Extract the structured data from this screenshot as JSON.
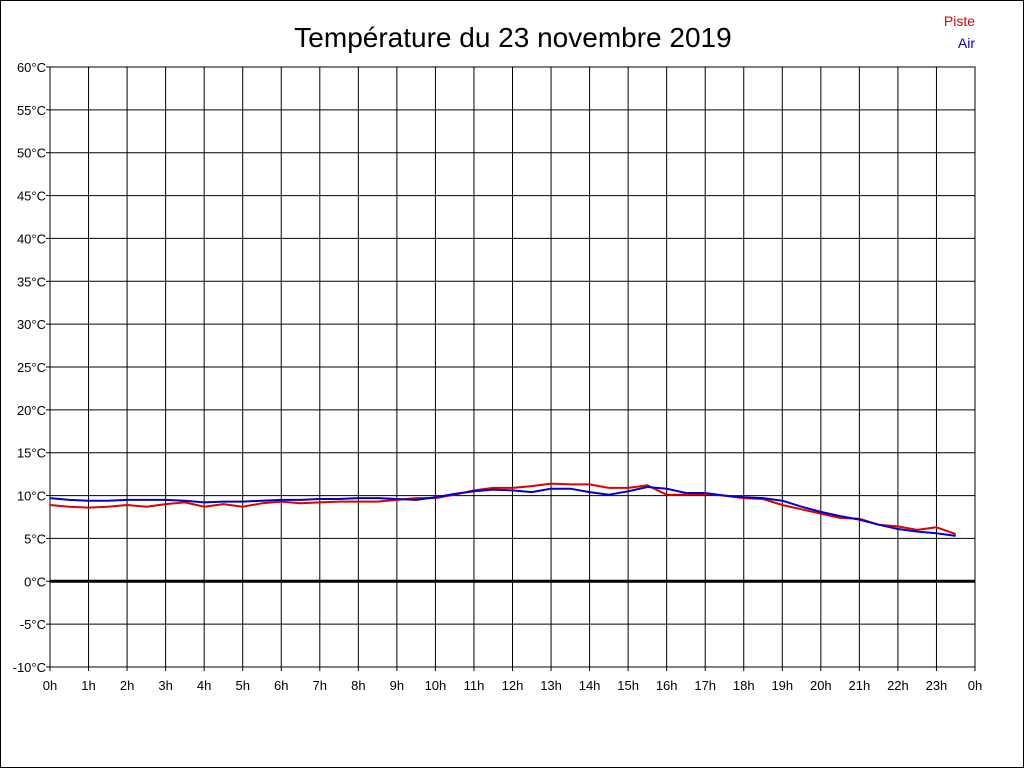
{
  "chart_data": {
    "type": "line",
    "title": "Température du 23 novembre 2019",
    "xlabel": "",
    "ylabel": "",
    "ylim": [
      -10,
      60
    ],
    "xlim": [
      0,
      24
    ],
    "grid": true,
    "legend_placement": "top-right",
    "y_ticks": [
      "-10°C",
      "-5°C",
      "0°C",
      "5°C",
      "10°C",
      "15°C",
      "20°C",
      "25°C",
      "30°C",
      "35°C",
      "40°C",
      "45°C",
      "50°C",
      "55°C",
      "60°C"
    ],
    "x_ticks": [
      "0h",
      "1h",
      "2h",
      "3h",
      "4h",
      "5h",
      "6h",
      "7h",
      "8h",
      "9h",
      "10h",
      "11h",
      "12h",
      "13h",
      "14h",
      "15h",
      "16h",
      "17h",
      "18h",
      "19h",
      "20h",
      "21h",
      "22h",
      "23h",
      "0h"
    ],
    "zero_line_value": 0,
    "series": [
      {
        "name": "Piste",
        "color": "#e00000",
        "x": [
          0,
          0.5,
          1,
          1.5,
          2,
          2.5,
          3,
          3.5,
          4,
          4.5,
          5,
          5.5,
          6,
          6.5,
          7,
          7.5,
          8,
          8.5,
          9,
          9.5,
          10,
          10.5,
          11,
          11.5,
          12,
          12.5,
          13,
          13.5,
          14,
          14.5,
          15,
          15.5,
          16,
          16.5,
          17,
          17.5,
          18,
          18.5,
          19,
          19.5,
          20,
          20.5,
          21,
          21.5,
          22,
          22.5,
          23,
          23.5
        ],
        "values": [
          8.9,
          8.7,
          8.6,
          8.7,
          8.9,
          8.7,
          9.0,
          9.2,
          8.7,
          9.0,
          8.7,
          9.1,
          9.3,
          9.1,
          9.2,
          9.3,
          9.3,
          9.3,
          9.5,
          9.7,
          9.7,
          10.1,
          10.6,
          10.9,
          10.9,
          11.1,
          11.4,
          11.3,
          11.3,
          10.9,
          10.9,
          11.2,
          10.1,
          10.1,
          10.2,
          10.0,
          9.7,
          9.6,
          8.9,
          8.4,
          7.9,
          7.4,
          7.3,
          6.6,
          6.4,
          6.0,
          6.3,
          5.5
        ]
      },
      {
        "name": "Air",
        "color": "#0000c8",
        "x": [
          0,
          0.5,
          1,
          1.5,
          2,
          2.5,
          3,
          3.5,
          4,
          4.5,
          5,
          5.5,
          6,
          6.5,
          7,
          7.5,
          8,
          8.5,
          9,
          9.5,
          10,
          10.5,
          11,
          11.5,
          12,
          12.5,
          13,
          13.5,
          14,
          14.5,
          15,
          15.5,
          16,
          16.5,
          17,
          17.5,
          18,
          18.5,
          19,
          19.5,
          20,
          20.5,
          21,
          21.5,
          22,
          22.5,
          23,
          23.5
        ],
        "values": [
          9.7,
          9.5,
          9.4,
          9.4,
          9.5,
          9.5,
          9.5,
          9.4,
          9.2,
          9.3,
          9.3,
          9.4,
          9.5,
          9.5,
          9.6,
          9.6,
          9.7,
          9.7,
          9.6,
          9.5,
          9.8,
          10.2,
          10.5,
          10.7,
          10.6,
          10.4,
          10.8,
          10.8,
          10.4,
          10.1,
          10.5,
          11.0,
          10.8,
          10.3,
          10.3,
          10.0,
          9.8,
          9.7,
          9.4,
          8.7,
          8.1,
          7.6,
          7.2,
          6.6,
          6.1,
          5.8,
          5.6,
          5.3
        ]
      }
    ]
  }
}
